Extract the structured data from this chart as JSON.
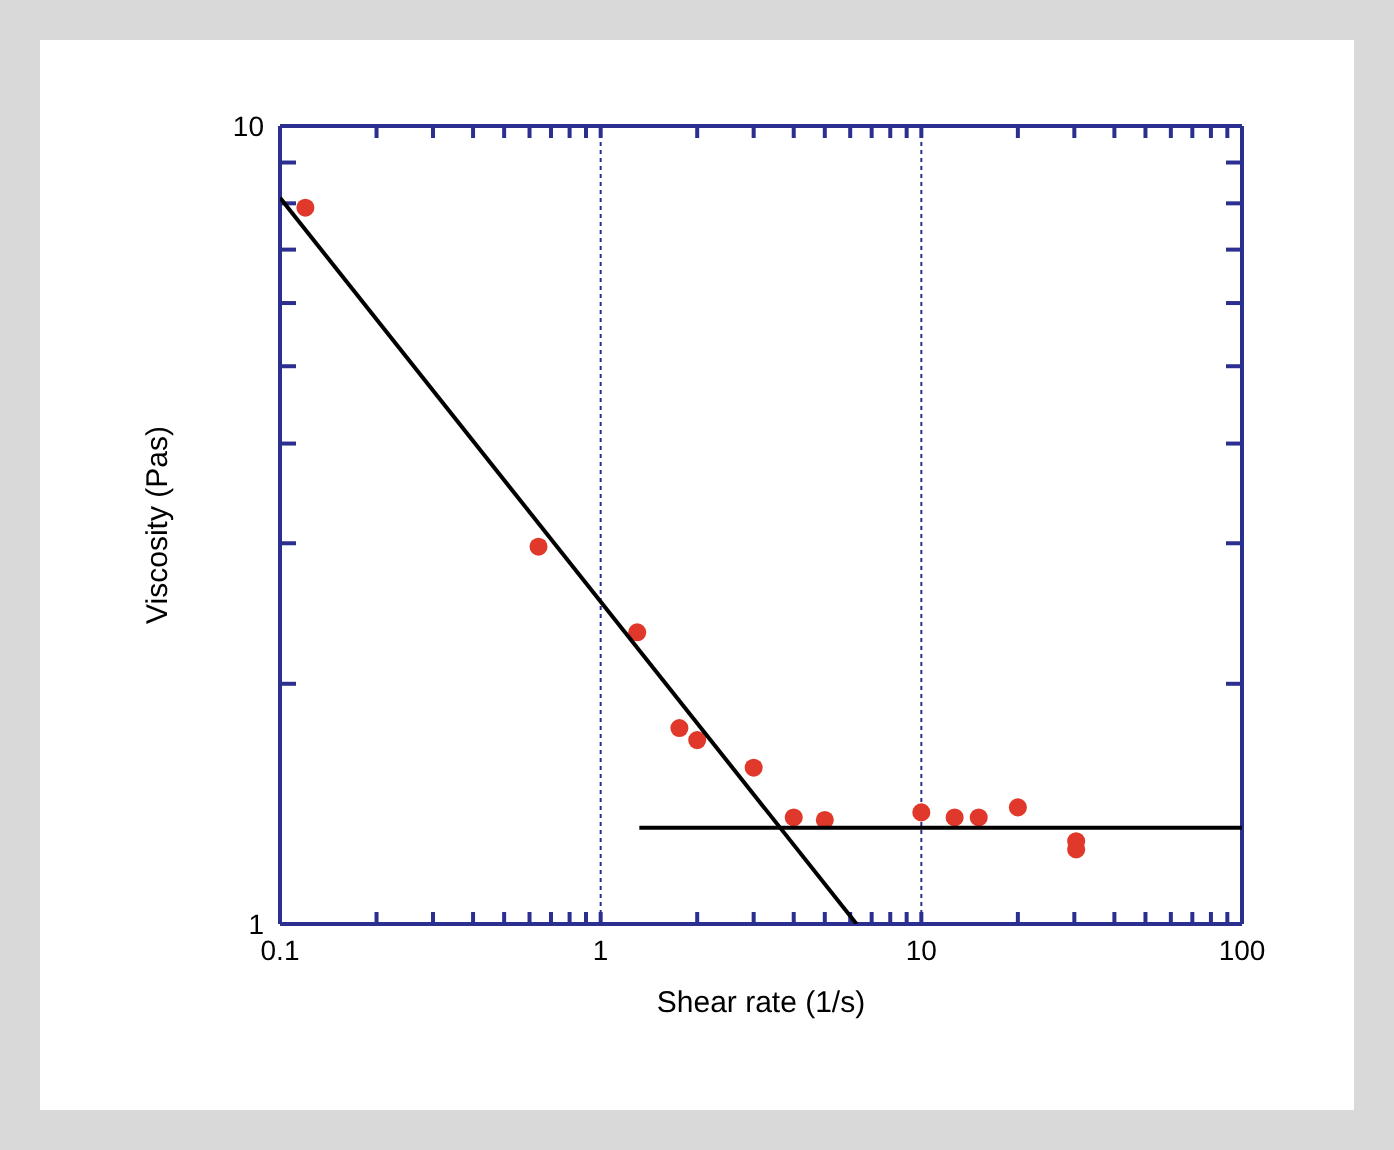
{
  "chart_data": {
    "type": "scatter",
    "xlabel": "Shear rate (1/s)",
    "ylabel": "Viscosity (Pas)",
    "log": "xy",
    "grid": "x",
    "legend": false,
    "xlim": [
      0.1,
      100
    ],
    "ylim": [
      1,
      10
    ],
    "xticks": [
      0.1,
      {
        "value": 0.2,
        "label": null
      },
      {
        "value": 0.3,
        "label": null
      },
      {
        "value": 0.4,
        "label": null
      },
      {
        "value": 0.5,
        "label": null
      },
      {
        "value": 0.6,
        "label": null
      },
      {
        "value": 0.7,
        "label": null
      },
      {
        "value": 0.8,
        "label": null
      },
      {
        "value": 0.9,
        "label": null
      },
      1,
      {
        "value": 2,
        "label": null
      },
      {
        "value": 3,
        "label": null
      },
      {
        "value": 4,
        "label": null
      },
      {
        "value": 5,
        "label": null
      },
      {
        "value": 6,
        "label": null
      },
      {
        "value": 7,
        "label": null
      },
      {
        "value": 8,
        "label": null
      },
      {
        "value": 9,
        "label": null
      },
      10,
      {
        "value": 20,
        "label": null
      },
      {
        "value": 30,
        "label": null
      },
      {
        "value": 40,
        "label": null
      },
      {
        "value": 50,
        "label": null
      },
      {
        "value": 60,
        "label": null
      },
      {
        "value": 70,
        "label": null
      },
      {
        "value": 80,
        "label": null
      },
      {
        "value": 90,
        "label": null
      },
      100
    ],
    "yticks": [
      1,
      {
        "value": 2,
        "label": null
      },
      {
        "value": 3,
        "label": null
      },
      {
        "value": 4,
        "label": null
      },
      {
        "value": 5,
        "label": null
      },
      {
        "value": 6,
        "label": null
      },
      {
        "value": 7,
        "label": null
      },
      {
        "value": 8,
        "label": null
      },
      {
        "value": 9,
        "label": null
      },
      10
    ],
    "series": [
      {
        "marker": "circle",
        "color": "#e0392b",
        "x": [
          0.12,
          0.64,
          1.3,
          1.76,
          2.0,
          3.0,
          4.0,
          5.0,
          10,
          12.7,
          15.1,
          20,
          30.4,
          30.4
        ],
        "values": [
          7.9,
          2.97,
          2.32,
          1.76,
          1.7,
          1.57,
          1.36,
          1.35,
          1.38,
          1.36,
          1.36,
          1.4,
          1.27,
          1.24
        ]
      },
      {
        "type": "line",
        "marker": "none",
        "color": "#000000",
        "x": [
          0.1,
          6.28
        ],
        "values": [
          8.13,
          1
        ]
      },
      {
        "type": "line",
        "marker": "none",
        "color": "#000000",
        "x": [
          1.32,
          100
        ],
        "values": [
          1.32,
          1.32
        ]
      }
    ]
  }
}
